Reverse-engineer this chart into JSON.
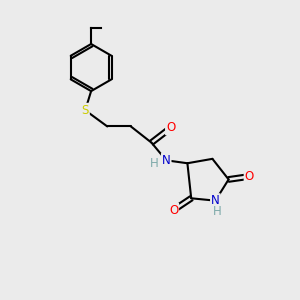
{
  "bg_color": "#ebebeb",
  "bond_color": "#000000",
  "N_color": "#0000cc",
  "O_color": "#ff0000",
  "S_color": "#cccc00",
  "H_color": "#7faaaa",
  "line_width": 1.5,
  "font_size": 8.5,
  "xlim": [
    0,
    10
  ],
  "ylim": [
    0,
    10
  ]
}
